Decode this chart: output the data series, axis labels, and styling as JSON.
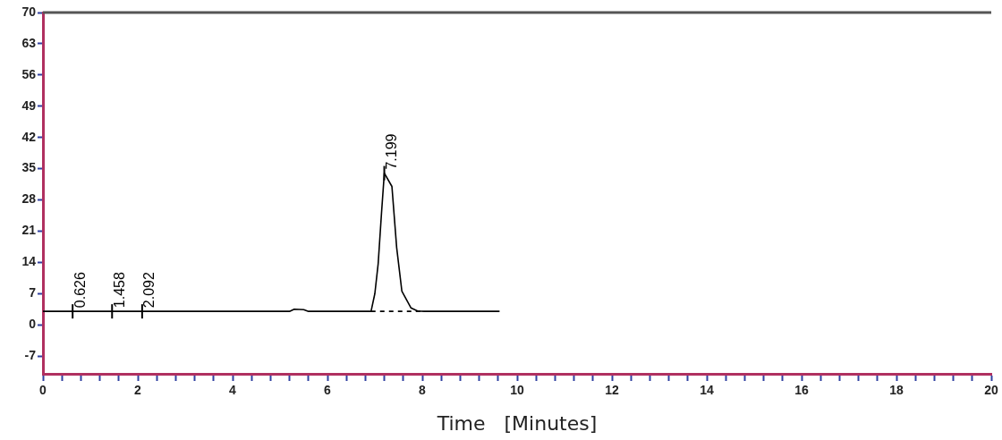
{
  "chart_data": {
    "type": "line",
    "xlabel": "Time   [Minutes]",
    "xlim": [
      0,
      20
    ],
    "xticks": [
      0,
      {
        "value": 0.4,
        "label": null
      },
      {
        "value": 0.8,
        "label": null
      },
      {
        "value": 1.2,
        "label": null
      },
      {
        "value": 1.6,
        "label": null
      },
      2,
      {
        "value": 2.4,
        "label": null
      },
      {
        "value": 2.8,
        "label": null
      },
      {
        "value": 3.2,
        "label": null
      },
      {
        "value": 3.6,
        "label": null
      },
      4,
      {
        "value": 4.4,
        "label": null
      },
      {
        "value": 4.8,
        "label": null
      },
      {
        "value": 5.2,
        "label": null
      },
      {
        "value": 5.6,
        "label": null
      },
      6,
      {
        "value": 6.4,
        "label": null
      },
      {
        "value": 6.8,
        "label": null
      },
      {
        "value": 7.2,
        "label": null
      },
      {
        "value": 7.6,
        "label": null
      },
      8,
      {
        "value": 8.4,
        "label": null
      },
      {
        "value": 8.8,
        "label": null
      },
      {
        "value": 9.2,
        "label": null
      },
      {
        "value": 9.6,
        "label": null
      },
      10,
      {
        "value": 10.4,
        "label": null
      },
      {
        "value": 10.8,
        "label": null
      },
      {
        "value": 11.2,
        "label": null
      },
      {
        "value": 11.6,
        "label": null
      },
      12,
      {
        "value": 12.4,
        "label": null
      },
      {
        "value": 12.8,
        "label": null
      },
      {
        "value": 13.2,
        "label": null
      },
      {
        "value": 13.6,
        "label": null
      },
      14,
      {
        "value": 14.4,
        "label": null
      },
      {
        "value": 14.8,
        "label": null
      },
      {
        "value": 15.2,
        "label": null
      },
      {
        "value": 15.6,
        "label": null
      },
      16,
      {
        "value": 16.4,
        "label": null
      },
      {
        "value": 16.8,
        "label": null
      },
      {
        "value": 17.2,
        "label": null
      },
      {
        "value": 17.6,
        "label": null
      },
      18,
      {
        "value": 18.4,
        "label": null
      },
      {
        "value": 18.8,
        "label": null
      },
      {
        "value": 19.2,
        "label": null
      },
      {
        "value": 19.6,
        "label": null
      },
      20
    ],
    "ylim": [
      -11,
      70
    ],
    "yticks": [
      -7,
      0,
      7,
      14,
      21,
      28,
      35,
      42,
      49,
      56,
      63,
      70
    ],
    "grid": false,
    "legend": false,
    "marker": "none",
    "series": [
      {
        "color": "#000000",
        "x": [
          0,
          3.4,
          5.2,
          5.3,
          5.5,
          5.6,
          6.92,
          7.0,
          7.07,
          7.14,
          7.2,
          7.36,
          7.46,
          7.57,
          7.76,
          7.9,
          8.04,
          9.63
        ],
        "values": [
          3,
          3,
          3,
          3.5,
          3.4,
          3,
          3,
          7,
          13.7,
          25,
          34,
          31,
          17.3,
          7.5,
          3.8,
          3.1,
          3,
          3
        ]
      },
      {
        "color": "#000000",
        "line_style": "dashed",
        "x": [
          6.92,
          8.04
        ],
        "values": [
          3,
          3
        ]
      }
    ],
    "annotations": [
      {
        "text": "0.626",
        "x": 0.626,
        "y": 3
      },
      {
        "text": "1.458",
        "x": 1.458,
        "y": 3
      },
      {
        "text": "2.092",
        "x": 2.092,
        "y": 3
      },
      {
        "text": "7.199",
        "x": 7.199,
        "y": 34
      }
    ]
  }
}
